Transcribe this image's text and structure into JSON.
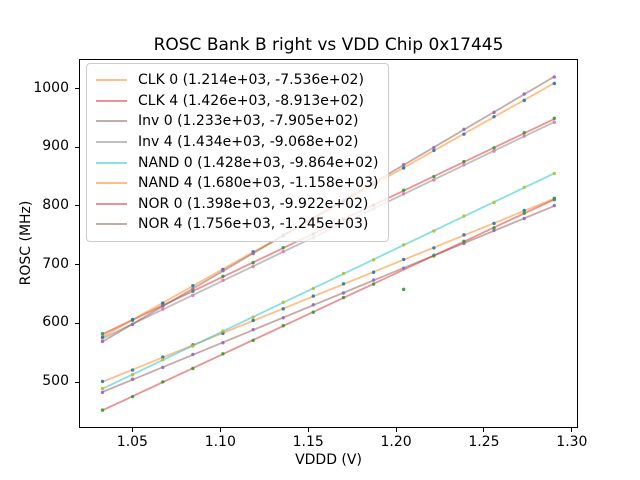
{
  "window": {
    "background": "#ffffff"
  },
  "chart_data": {
    "type": "scatter",
    "title": "ROSC Bank B right vs VDD Chip 0x17445",
    "xlabel": "VDDD (V)",
    "ylabel": "ROSC (MHz)",
    "xlim": [
      1.0202,
      1.3029
    ],
    "ylim": [
      423.6,
      1048.6
    ],
    "x_ticks": [
      1.05,
      1.1,
      1.15,
      1.2,
      1.25,
      1.3
    ],
    "x_tick_labels": [
      "1.05",
      "1.10",
      "1.15",
      "1.20",
      "1.25",
      "1.30"
    ],
    "y_ticks": [
      500,
      600,
      700,
      800,
      900,
      1000
    ],
    "y_tick_labels": [
      "500",
      "600",
      "700",
      "800",
      "900",
      "1000"
    ],
    "grid": false,
    "legend_position": "upper left",
    "legend_frame_alpha": 0.8,
    "line_alpha": 0.5,
    "marker_alpha": 0.9,
    "fit_x_range": [
      1.033,
      1.29
    ],
    "x": [
      1.033,
      1.0501,
      1.0673,
      1.0844,
      1.1015,
      1.1187,
      1.1358,
      1.1529,
      1.1701,
      1.1872,
      1.2043,
      1.2215,
      1.2386,
      1.2557,
      1.2729,
      1.29
    ],
    "series": [
      {
        "name": "CLK 0",
        "label": "CLK 0 (1.214e+03, -7.536e+02)",
        "marker_color": "#1f77b4",
        "line_color": "#ff7f0e",
        "fit": {
          "slope": 1214.0,
          "intercept": -753.6
        },
        "values": [
          501.2,
          520.6,
          542.7,
          563.5,
          583.1,
          605.0,
          624.8,
          646.5,
          667.4,
          687.2,
          709.0,
          728.6,
          750.8,
          770.3,
          792.4,
          813.1
        ]
      },
      {
        "name": "CLK 4",
        "label": "CLK 4 (1.426e+03, -8.913e+02)",
        "marker_color": "#2ca02c",
        "line_color": "#d62728",
        "fit": {
          "slope": 1426.0,
          "intercept": -891.3
        },
        "values": [
          582.5,
          605.4,
          631.2,
          654.7,
          680.1,
          703.4,
          729.0,
          752.2,
          778.0,
          801.3,
          826.8,
          850.1,
          875.7,
          899.0,
          924.7,
          949.2
        ]
      },
      {
        "name": "Inv 0",
        "label": "Inv 0 (1.233e+03, -7.905e+02)",
        "marker_color": "#9467bd",
        "line_color": "#8c564b",
        "fit": {
          "slope": 1233.0,
          "intercept": -790.5
        },
        "values": [
          482.6,
          504.9,
          525.1,
          547.2,
          567.1,
          589.4,
          609.6,
          631.7,
          651.8,
          673.9,
          694.1,
          716.2,
          736.3,
          758.4,
          778.6,
          800.7
        ]
      },
      {
        "name": "Inv 4",
        "label": "Inv 4 (1.434e+03, -9.068e+02)",
        "marker_color": "#e377c2",
        "line_color": "#7f7f7f",
        "fit": {
          "slope": 1434.0,
          "intercept": -906.8
        },
        "values": [
          575.1,
          598.4,
          624.3,
          647.7,
          673.3,
          696.9,
          722.5,
          746.0,
          771.7,
          795.2,
          820.8,
          844.3,
          870.0,
          893.4,
          919.1,
          942.6
        ]
      },
      {
        "name": "NAND 0",
        "label": "NAND 0 (1.428e+03, -9.864e+02)",
        "marker_color": "#bcbd22",
        "line_color": "#17becf",
        "fit": {
          "slope": 1428.0,
          "intercept": -986.4
        },
        "values": [
          489.3,
          512.6,
          538.2,
          561.6,
          587.0,
          610.6,
          636.0,
          659.4,
          685.0,
          708.4,
          733.9,
          757.4,
          782.9,
          806.2,
          831.8,
          855.2
        ]
      },
      {
        "name": "NAND 4",
        "label": "NAND 4 (1.680e+03, -1.158e+03)",
        "marker_color": "#1f77b4",
        "line_color": "#ff7f0e",
        "fit": {
          "slope": 1680.0,
          "intercept": -1158.0
        },
        "values": [
          576.8,
          606.8,
          634.6,
          664.3,
          692.0,
          721.9,
          749.6,
          779.4,
          807.3,
          837.0,
          864.7,
          894.6,
          922.3,
          952.1,
          979.9,
          1008.6
        ]
      },
      {
        "name": "NOR 0",
        "label": "NOR 0 (1.398e+03, -9.922e+02)",
        "marker_color": "#2ca02c",
        "line_color": "#d62728",
        "fit": {
          "slope": 1398.0,
          "intercept": -992.2
        },
        "values": [
          452.4,
          475.3,
          500.4,
          523.3,
          548.2,
          571.2,
          596.1,
          619.1,
          644.1,
          667.0,
          658.0,
          715.0,
          739.9,
          762.8,
          787.8,
          810.7
        ]
      },
      {
        "name": "NOR 4",
        "label": "NOR 4 (1.756e+03, -1.245e+03)",
        "marker_color": "#9467bd",
        "line_color": "#8c564b",
        "fit": {
          "slope": 1756.0,
          "intercept": -1245.0
        },
        "values": [
          569.5,
          598.5,
          629.7,
          658.7,
          689.8,
          718.9,
          750.0,
          779.0,
          810.2,
          839.2,
          870.3,
          899.5,
          930.5,
          959.5,
          990.7,
          1019.8
        ]
      }
    ]
  }
}
